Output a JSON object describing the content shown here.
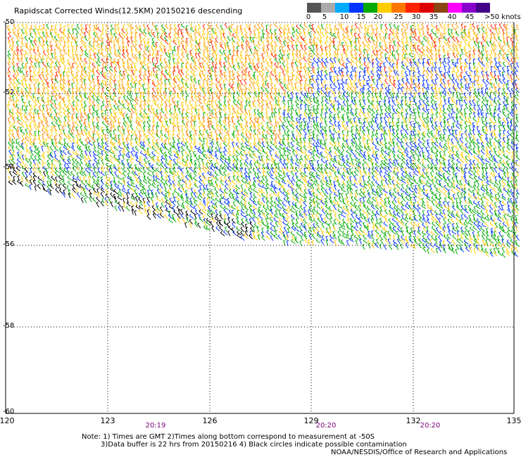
{
  "title": "Rapidscat Corrected Winds(12.5KM) 20150216 descending",
  "colorbar": {
    "colors": [
      "#555555",
      "#aaaaaa",
      "#00aaff",
      "#0033ff",
      "#00aa00",
      "#ffcc00",
      "#ff7700",
      "#ff2200",
      "#dd0000",
      "#8b4513",
      "#ff00ff",
      "#8800cc",
      "#440088"
    ],
    "labels": [
      "0",
      "5",
      "10",
      "15",
      "20",
      "25",
      "30",
      "35",
      "40",
      "45"
    ],
    "unit": ">50 knots"
  },
  "axes": {
    "lat_labels": [
      "-50",
      "-52",
      "-54",
      "-56",
      "-58",
      "-60"
    ],
    "lon_labels": [
      "120",
      "123",
      "126",
      "129",
      "132",
      "135"
    ]
  },
  "times": [
    "20:19",
    "20:20",
    "20:20"
  ],
  "notes": [
    "Note: 1) Times are GMT 2)Times along bottom correspond to measurement at -50S",
    "3)Data buffer is 22 hrs from 20150216 4) Black circles indicate possible contamination",
    "NOAA/NESDIS/Office of Research and Applications"
  ]
}
